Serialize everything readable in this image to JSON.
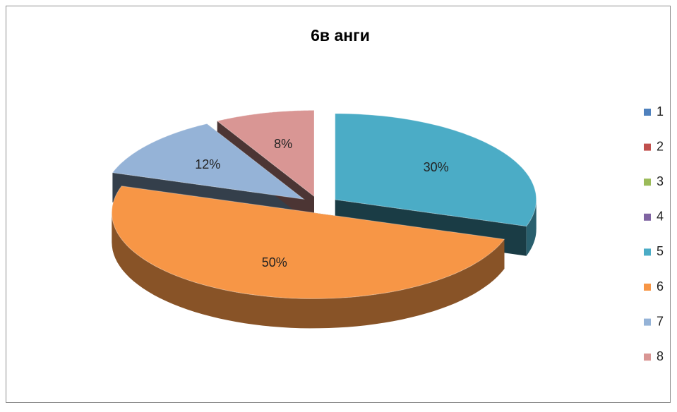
{
  "chart_data": {
    "type": "pie3d",
    "title": "6в анги",
    "categories": [
      "1",
      "2",
      "3",
      "4",
      "5",
      "6",
      "7",
      "8"
    ],
    "values": [
      0,
      0,
      0,
      0,
      30,
      50,
      12,
      8
    ],
    "value_labels": [
      null,
      null,
      null,
      null,
      "30%",
      "50%",
      "12%",
      "8%"
    ],
    "colors": [
      "#4f81bd",
      "#c0504d",
      "#9bbb59",
      "#8064a2",
      "#4bacc6",
      "#f79646",
      "#95b3d7",
      "#d99694"
    ],
    "legend": "right"
  }
}
